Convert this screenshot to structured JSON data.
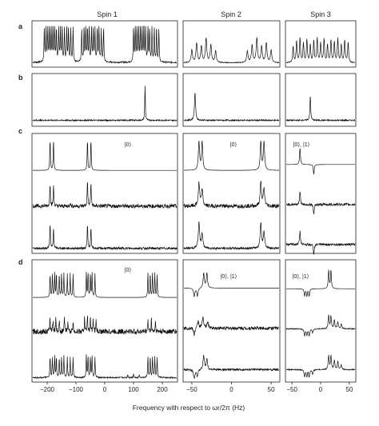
{
  "chart_data": {
    "type": "line",
    "columns": [
      {
        "title": "Spin 1",
        "xlim": [
          -250,
          250
        ],
        "ticks": [
          -200,
          -100,
          0,
          100,
          200
        ]
      },
      {
        "title": "Spin 2",
        "xlim": [
          -60,
          60
        ],
        "ticks": [
          -50,
          0,
          50
        ]
      },
      {
        "title": "Spin 3",
        "xlim": [
          -60,
          60
        ],
        "ticks": [
          -50,
          0,
          50
        ]
      }
    ],
    "rows": [
      {
        "label": "a",
        "traces": 1
      },
      {
        "label": "b",
        "traces": 1
      },
      {
        "label": "c",
        "traces": 3
      },
      {
        "label": "d",
        "traces": 3
      }
    ],
    "annotations": [
      {
        "row": 2,
        "col": 0,
        "text": "|0⟩"
      },
      {
        "row": 2,
        "col": 1,
        "text": "|0⟩"
      },
      {
        "row": 2,
        "col": 2,
        "text": "|0⟩, |1⟩"
      },
      {
        "row": 3,
        "col": 0,
        "text": "|0⟩"
      },
      {
        "row": 3,
        "col": 1,
        "text": "|0⟩, |1⟩"
      },
      {
        "row": 3,
        "col": 2,
        "text": "|0⟩, |1⟩"
      }
    ],
    "xlabel": "Frequency with respect to ωr/2π (Hz)",
    "panels": {
      "a0": [
        {
          "peaks": [
            [
              -210,
              0.88
            ],
            [
              -204,
              0.92
            ],
            [
              -198,
              0.9
            ],
            [
              -192,
              0.95
            ],
            [
              -186,
              0.88
            ],
            [
              -180,
              0.93
            ],
            [
              -174,
              0.9
            ],
            [
              -168,
              0.86
            ],
            [
              -160,
              0.9
            ],
            [
              -154,
              0.88
            ],
            [
              -148,
              0.94
            ],
            [
              -140,
              0.86
            ],
            [
              -132,
              0.9
            ],
            [
              -126,
              0.92
            ],
            [
              -118,
              0.85
            ],
            [
              -110,
              0.9
            ],
            [
              -80,
              0.86
            ],
            [
              -72,
              0.9
            ],
            [
              -66,
              0.95
            ],
            [
              -60,
              0.88
            ],
            [
              -54,
              0.92
            ],
            [
              -46,
              0.9
            ],
            [
              -40,
              0.87
            ],
            [
              -34,
              0.94
            ],
            [
              -26,
              0.88
            ],
            [
              -20,
              0.9
            ],
            [
              -12,
              0.86
            ],
            [
              -4,
              0.9
            ],
            [
              100,
              0.86
            ],
            [
              106,
              0.9
            ],
            [
              112,
              0.93
            ],
            [
              118,
              0.88
            ],
            [
              124,
              0.92
            ],
            [
              130,
              0.9
            ],
            [
              136,
              0.95
            ],
            [
              142,
              0.88
            ],
            [
              150,
              0.9
            ],
            [
              156,
              0.86
            ],
            [
              164,
              0.92
            ],
            [
              172,
              0.88
            ],
            [
              180,
              0.9
            ],
            [
              188,
              0.86
            ]
          ],
          "width": 1.2,
          "noise": 0.02,
          "base": 0.06
        }
      ],
      "a1": [
        {
          "peaks": [
            [
              -50,
              0.32
            ],
            [
              -44,
              0.5
            ],
            [
              -38,
              0.42
            ],
            [
              -32,
              0.62
            ],
            [
              -26,
              0.45
            ],
            [
              -20,
              0.3
            ],
            [
              20,
              0.3
            ],
            [
              26,
              0.45
            ],
            [
              32,
              0.62
            ],
            [
              38,
              0.42
            ],
            [
              44,
              0.5
            ],
            [
              50,
              0.32
            ]
          ],
          "width": 1.0,
          "noise": 0.01,
          "base": 0.05
        }
      ],
      "a2": [
        {
          "peaks": [
            [
              -48,
              0.42
            ],
            [
              -42,
              0.55
            ],
            [
              -36,
              0.62
            ],
            [
              -30,
              0.5
            ],
            [
              -24,
              0.58
            ],
            [
              -18,
              0.45
            ],
            [
              -12,
              0.56
            ],
            [
              -6,
              0.62
            ],
            [
              0,
              0.5
            ],
            [
              6,
              0.6
            ],
            [
              12,
              0.45
            ],
            [
              18,
              0.58
            ],
            [
              24,
              0.52
            ],
            [
              30,
              0.62
            ],
            [
              36,
              0.46
            ],
            [
              42,
              0.58
            ],
            [
              48,
              0.52
            ]
          ],
          "width": 1.0,
          "noise": 0.01,
          "base": 0.05
        }
      ],
      "b0": [
        {
          "peaks": [
            [
              140,
              0.78
            ]
          ],
          "width": 1.2,
          "noise": 0.015,
          "base": 0.08
        }
      ],
      "b1": [
        {
          "peaks": [
            [
              -46,
              0.62
            ]
          ],
          "width": 0.8,
          "noise": 0.015,
          "base": 0.08
        }
      ],
      "b2": [
        {
          "peaks": [
            [
              -18,
              0.55
            ]
          ],
          "width": 0.8,
          "noise": 0.015,
          "base": 0.08
        }
      ],
      "c0": [
        {
          "peaks": [
            [
              -190,
              0.92
            ],
            [
              -178,
              0.92
            ],
            [
              -60,
              0.92
            ],
            [
              -48,
              0.92
            ]
          ],
          "width": 1.3,
          "noise": 0,
          "base": 0.02
        },
        {
          "peaks": [
            [
              -190,
              0.72
            ],
            [
              -178,
              0.62
            ],
            [
              -60,
              0.78
            ],
            [
              -48,
              0.72
            ],
            [
              -120,
              0.12
            ]
          ],
          "width": 1.3,
          "noise": 0.06,
          "base": 0.15
        },
        {
          "peaks": [
            [
              -190,
              0.75
            ],
            [
              -178,
              0.62
            ],
            [
              -60,
              0.72
            ],
            [
              -48,
              0.62
            ]
          ],
          "width": 1.3,
          "noise": 0.035,
          "base": 0.08
        }
      ],
      "c1": [
        {
          "peaks": [
            [
              -41,
              0.88
            ],
            [
              -37,
              0.88
            ],
            [
              37,
              0.88
            ],
            [
              41,
              0.88
            ]
          ],
          "width": 0.9,
          "noise": 0,
          "base": 0.02
        },
        {
          "peaks": [
            [
              -41,
              0.7
            ],
            [
              -37,
              0.5
            ],
            [
              37,
              0.72
            ],
            [
              41,
              0.52
            ]
          ],
          "width": 1.0,
          "noise": 0.06,
          "base": 0.15
        },
        {
          "peaks": [
            [
              -41,
              0.78
            ],
            [
              -37,
              0.45
            ],
            [
              37,
              0.76
            ],
            [
              41,
              0.5
            ]
          ],
          "width": 1.0,
          "noise": 0.035,
          "base": 0.08
        }
      ],
      "c2": [
        {
          "peaks": [
            [
              -36,
              0.5
            ],
            [
              -12,
              -0.3
            ]
          ],
          "width": 0.9,
          "noise": 0,
          "base": 0.2
        },
        {
          "peaks": [
            [
              -36,
              0.4
            ],
            [
              -12,
              -0.32
            ]
          ],
          "width": 0.9,
          "noise": 0.04,
          "base": 0.2
        },
        {
          "peaks": [
            [
              -36,
              0.4
            ],
            [
              -12,
              -0.32
            ]
          ],
          "width": 0.9,
          "noise": 0.035,
          "base": 0.2
        }
      ],
      "d0": [
        {
          "peaks": [
            [
              -190,
              0.7
            ],
            [
              -182,
              0.7
            ],
            [
              -174,
              0.72
            ],
            [
              -168,
              0.72
            ],
            [
              -158,
              0.7
            ],
            [
              -150,
              0.7
            ],
            [
              -142,
              0.72
            ],
            [
              -130,
              0.7
            ],
            [
              -120,
              0.72
            ],
            [
              -110,
              0.7
            ],
            [
              -64,
              0.74
            ],
            [
              -58,
              0.74
            ],
            [
              -50,
              0.72
            ],
            [
              -44,
              0.72
            ],
            [
              -34,
              0.72
            ],
            [
              150,
              0.74
            ],
            [
              158,
              0.72
            ],
            [
              166,
              0.74
            ],
            [
              174,
              0.72
            ],
            [
              182,
              0.7
            ]
          ],
          "width": 1.1,
          "noise": 0,
          "base": 0.02
        },
        {
          "peaks": [
            [
              -190,
              0.42
            ],
            [
              -180,
              0.35
            ],
            [
              -170,
              0.45
            ],
            [
              -158,
              0.3
            ],
            [
              -140,
              0.4
            ],
            [
              -128,
              0.34
            ],
            [
              -110,
              0.3
            ],
            [
              -70,
              0.45
            ],
            [
              -60,
              0.5
            ],
            [
              -50,
              0.42
            ],
            [
              -40,
              0.38
            ],
            [
              -30,
              0.32
            ],
            [
              150,
              0.38
            ],
            [
              162,
              0.35
            ],
            [
              176,
              0.32
            ]
          ],
          "width": 1.1,
          "noise": 0.08,
          "base": 0.22
        },
        {
          "peaks": [
            [
              -190,
              0.62
            ],
            [
              -182,
              0.6
            ],
            [
              -174,
              0.65
            ],
            [
              -168,
              0.62
            ],
            [
              -158,
              0.6
            ],
            [
              -150,
              0.62
            ],
            [
              -142,
              0.64
            ],
            [
              -130,
              0.6
            ],
            [
              -120,
              0.62
            ],
            [
              -110,
              0.6
            ],
            [
              -64,
              0.66
            ],
            [
              -58,
              0.64
            ],
            [
              -50,
              0.62
            ],
            [
              -44,
              0.64
            ],
            [
              -34,
              0.62
            ],
            [
              150,
              0.64
            ],
            [
              158,
              0.62
            ],
            [
              166,
              0.64
            ],
            [
              174,
              0.6
            ],
            [
              182,
              0.6
            ],
            [
              80,
              0.1
            ],
            [
              100,
              0.12
            ],
            [
              120,
              0.1
            ]
          ],
          "width": 1.1,
          "noise": 0.02,
          "base": 0.06
        }
      ],
      "d1": [
        {
          "peaks": [
            [
              -47,
              -0.25
            ],
            [
              -43,
              -0.25
            ],
            [
              -35,
              0.45
            ],
            [
              -31,
              0.45
            ]
          ],
          "width": 0.9,
          "noise": 0,
          "base": 0.3
        },
        {
          "peaks": [
            [
              -47,
              -0.2
            ],
            [
              -42,
              0.22
            ],
            [
              -36,
              0.34
            ],
            [
              -30,
              0.18
            ]
          ],
          "width": 1.0,
          "noise": 0.05,
          "base": 0.32
        },
        {
          "peaks": [
            [
              -47,
              -0.25
            ],
            [
              -43,
              -0.2
            ],
            [
              -35,
              0.42
            ],
            [
              -31,
              0.3
            ]
          ],
          "width": 1.0,
          "noise": 0.03,
          "base": 0.3
        }
      ],
      "d2": [
        {
          "peaks": [
            [
              -28,
              -0.22
            ],
            [
              -24,
              -0.22
            ],
            [
              -20,
              -0.22
            ],
            [
              14,
              0.55
            ],
            [
              18,
              0.55
            ]
          ],
          "width": 0.9,
          "noise": 0,
          "base": 0.28
        },
        {
          "peaks": [
            [
              -28,
              -0.2
            ],
            [
              -24,
              -0.18
            ],
            [
              -20,
              -0.2
            ],
            [
              -14,
              -0.12
            ],
            [
              14,
              0.4
            ],
            [
              18,
              0.38
            ],
            [
              24,
              0.25
            ],
            [
              30,
              0.22
            ],
            [
              36,
              0.15
            ]
          ],
          "width": 1.0,
          "noise": 0.015,
          "base": 0.3
        },
        {
          "peaks": [
            [
              -28,
              -0.22
            ],
            [
              -24,
              -0.2
            ],
            [
              -20,
              -0.22
            ],
            [
              -14,
              -0.15
            ],
            [
              14,
              0.42
            ],
            [
              18,
              0.4
            ],
            [
              24,
              0.28
            ],
            [
              30,
              0.24
            ],
            [
              36,
              0.14
            ]
          ],
          "width": 1.0,
          "noise": 0.015,
          "base": 0.3
        }
      ]
    }
  }
}
